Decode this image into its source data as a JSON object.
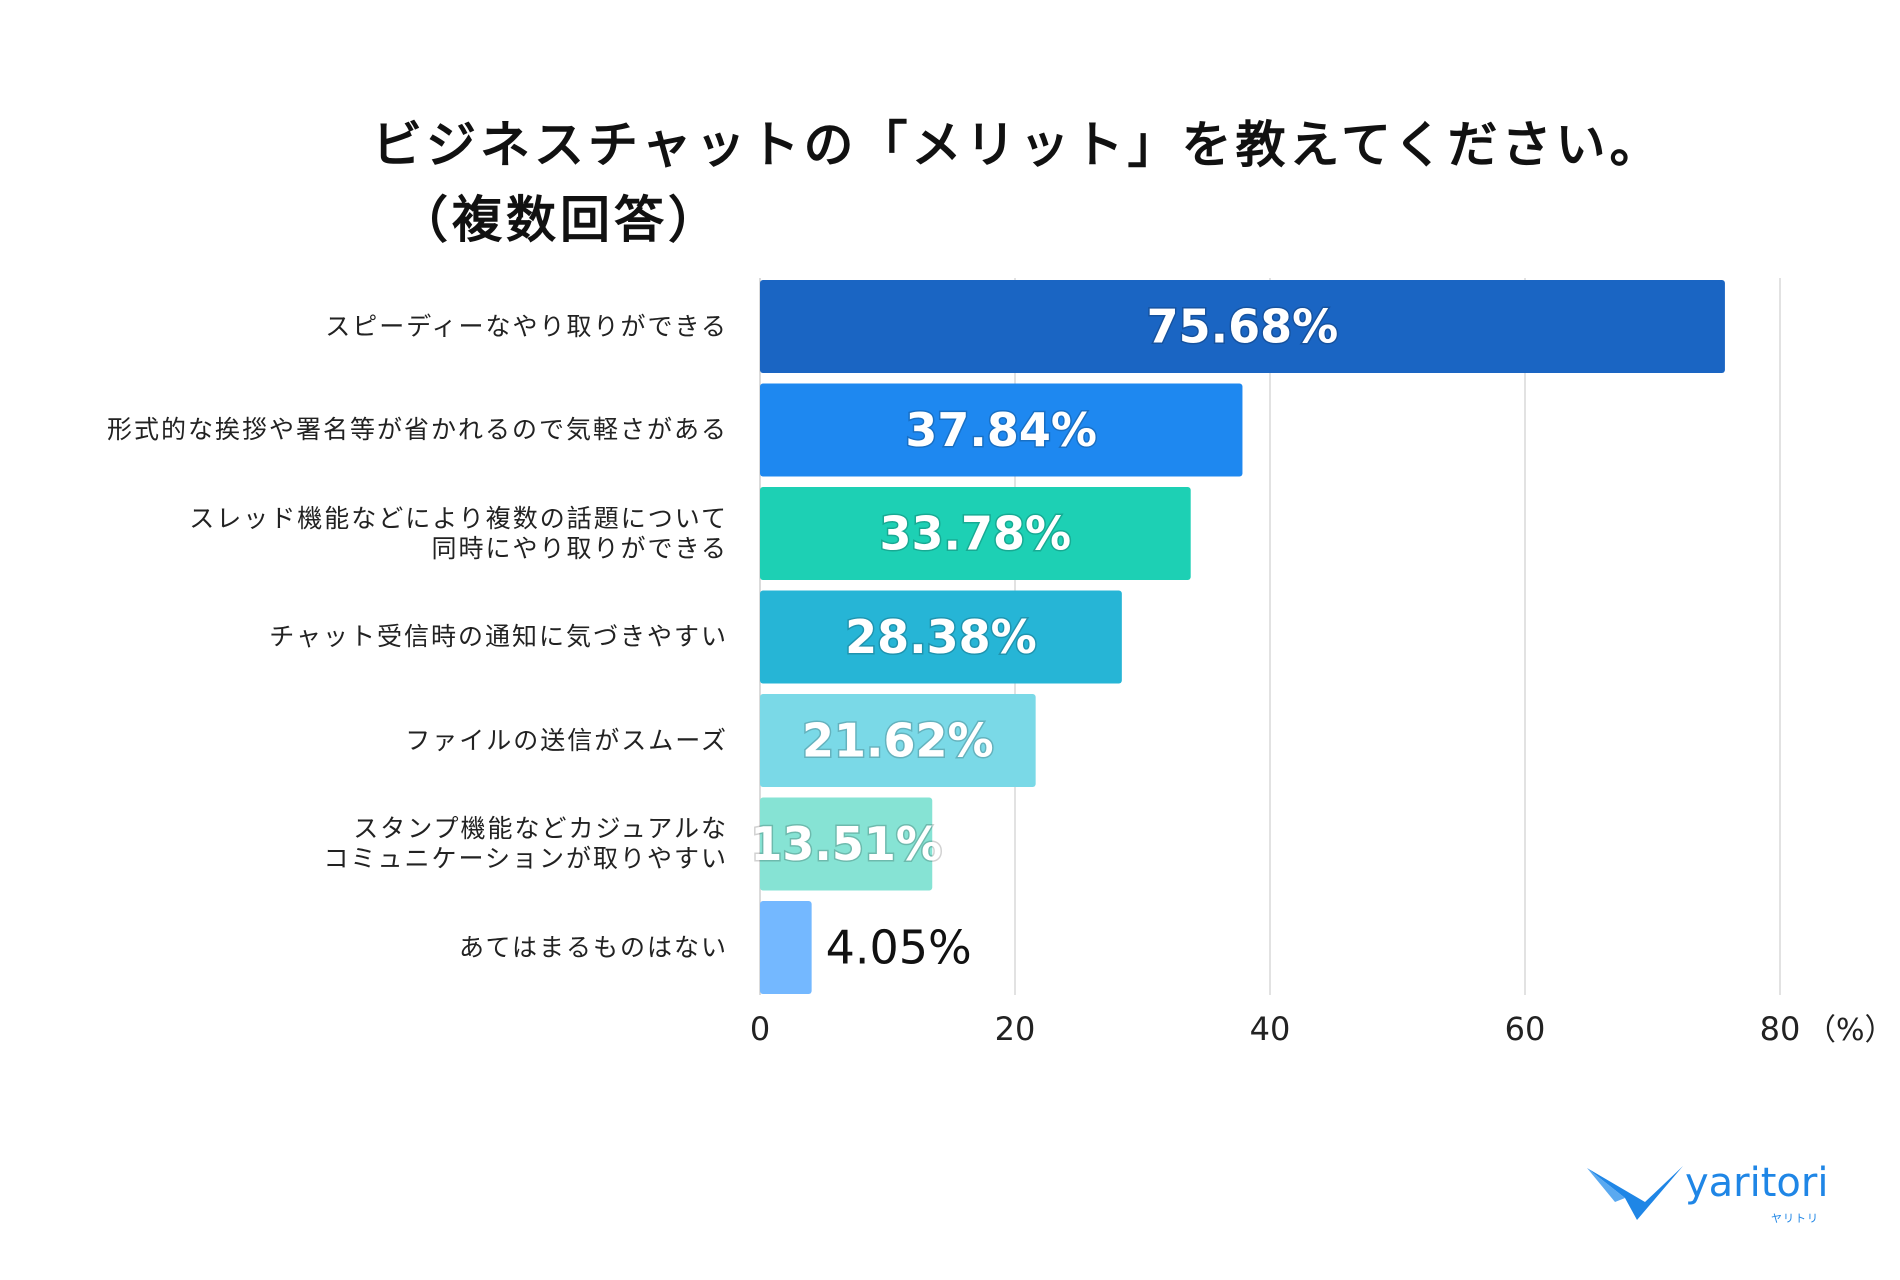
{
  "chart_data": {
    "type": "bar",
    "orientation": "horizontal",
    "title_line1": "ビジネスチャットの「メリット」を教えてください。",
    "title_line2": "（複数回答）",
    "categories": [
      [
        "スピーディーなやり取りができる"
      ],
      [
        "形式的な挨拶や署名等が省かれるので気軽さがある"
      ],
      [
        "スレッド機能などにより複数の話題について",
        "同時にやり取りができる"
      ],
      [
        "チャット受信時の通知に気づきやすい"
      ],
      [
        "ファイルの送信がスムーズ"
      ],
      [
        "スタンプ機能などカジュアルな",
        "コミュニケーションが取りやすい"
      ],
      [
        "あてはまるものはない"
      ]
    ],
    "values": [
      75.68,
      37.84,
      33.78,
      28.38,
      21.62,
      13.51,
      4.05
    ],
    "data_labels": [
      "75.68%",
      "37.84%",
      "33.78%",
      "28.38%",
      "21.62%",
      "13.51%",
      "4.05%"
    ],
    "colors": [
      "#1a65c3",
      "#1e88f0",
      "#1dd0b4",
      "#26b5d6",
      "#7ad9e7",
      "#86e3d4",
      "#74b8ff"
    ],
    "xlim": [
      0,
      80
    ],
    "xticks": [
      "0",
      "20",
      "40",
      "60",
      "80"
    ],
    "xunit": "（%）",
    "grid": true
  },
  "logo": {
    "text": "yaritori",
    "sub": "ヤリトリ",
    "color": "#1f86e6"
  }
}
